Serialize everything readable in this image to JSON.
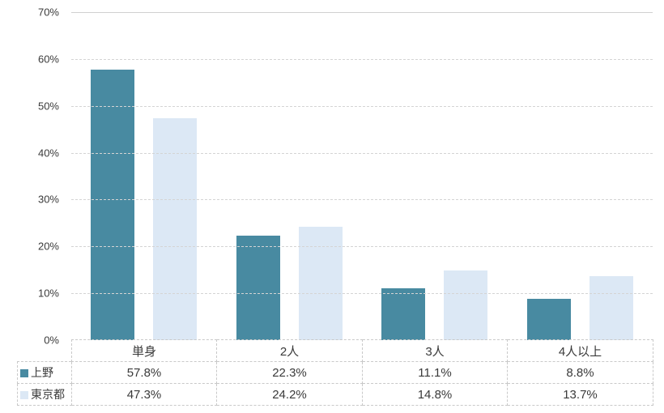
{
  "chart_data": {
    "type": "bar",
    "title": "",
    "xlabel": "",
    "ylabel": "",
    "categories": [
      "単身",
      "2人",
      "3人",
      "4人以上"
    ],
    "series": [
      {
        "name": "上野",
        "color": "#488AA1",
        "values": [
          57.8,
          22.3,
          11.1,
          8.8
        ],
        "labels": [
          "57.8%",
          "22.3%",
          "11.1%",
          "8.8%"
        ]
      },
      {
        "name": "東京都",
        "color": "#DCE8F5",
        "values": [
          47.3,
          24.2,
          14.8,
          13.7
        ],
        "labels": [
          "47.3%",
          "24.2%",
          "14.8%",
          "13.7%"
        ]
      }
    ],
    "ylim": [
      0,
      70
    ],
    "yticks": [
      0,
      10,
      20,
      30,
      40,
      50,
      60,
      70
    ],
    "ytick_labels": [
      "0%",
      "10%",
      "20%",
      "30%",
      "40%",
      "50%",
      "60%",
      "70%"
    ],
    "grid": "horizontal-dashed",
    "legend_position": "table-left-column"
  }
}
